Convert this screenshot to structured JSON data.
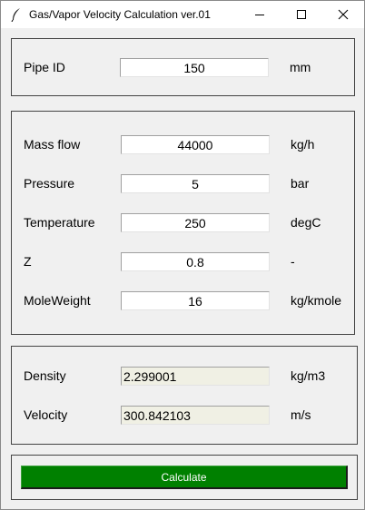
{
  "window": {
    "title": "Gas/Vapor Velocity Calculation ver.01",
    "icon": "feather-icon"
  },
  "pipe": {
    "label": "Pipe ID",
    "value": "150",
    "unit": "mm"
  },
  "inputs": {
    "mass_flow": {
      "label": "Mass flow",
      "value": "44000",
      "unit": "kg/h"
    },
    "pressure": {
      "label": "Pressure",
      "value": "5",
      "unit": "bar"
    },
    "temperature": {
      "label": "Temperature",
      "value": "250",
      "unit": "degC"
    },
    "z": {
      "label": "Z",
      "value": "0.8",
      "unit": "-"
    },
    "mole_weight": {
      "label": "MoleWeight",
      "value": "16",
      "unit": "kg/kmole"
    }
  },
  "outputs": {
    "density": {
      "label": "Density",
      "value": "2.299001",
      "unit": "kg/m3"
    },
    "velocity": {
      "label": "Velocity",
      "value": "300.842103",
      "unit": "m/s"
    }
  },
  "actions": {
    "calculate_label": "Calculate",
    "button_color": "#008000"
  }
}
